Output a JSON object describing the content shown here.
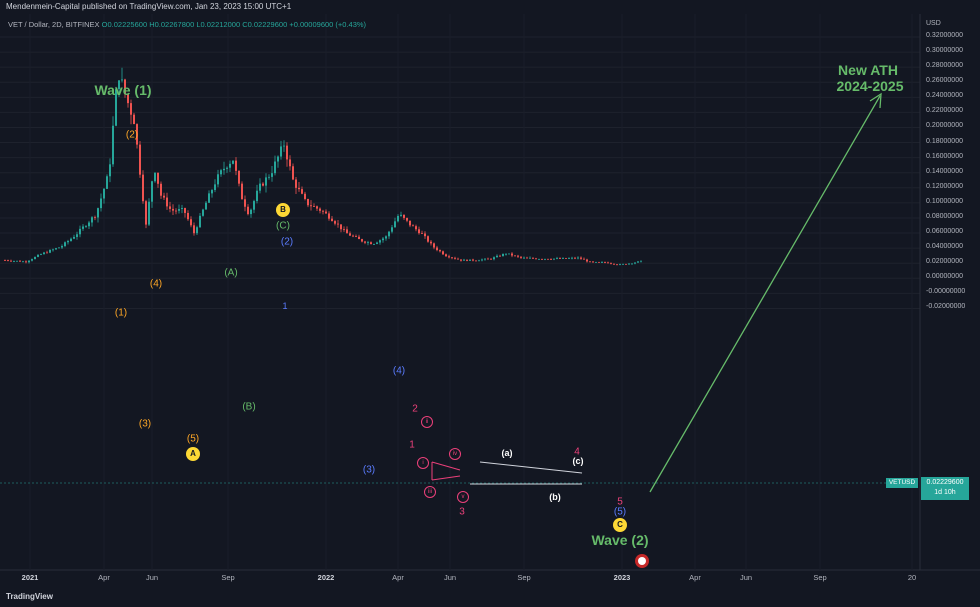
{
  "header": {
    "publisher_line": "Mendenmein-Capital published on TradingView.com, Jan 23, 2023 15:00 UTC+1"
  },
  "legend": {
    "symbol": "VET / Dollar, 2D, BITFINEX",
    "ohlc": "O0.02225600  H0.02267800  L0.02212000  C0.02229600  +0.00009600 (+0.43%)"
  },
  "price_axis": {
    "currency": "USD",
    "ticks": [
      "0.32000000",
      "0.30000000",
      "0.28000000",
      "0.26000000",
      "0.24000000",
      "0.22000000",
      "0.20000000",
      "0.18000000",
      "0.16000000",
      "0.14000000",
      "0.12000000",
      "0.10000000",
      "0.08000000",
      "0.06000000",
      "0.04000000",
      "0.02000000",
      "0.00000000",
      "-0.00000000",
      "-0.02000000"
    ],
    "last_price": "0.02229600",
    "countdown": "1d 10h",
    "symbol_badge": "VETUSD"
  },
  "time_axis": [
    "2021",
    "Apr",
    "Jun",
    "Sep",
    "2022",
    "Apr",
    "Jun",
    "Sep",
    "2023",
    "Apr",
    "Jun",
    "Sep",
    "20"
  ],
  "annotations": {
    "wave1": "Wave (1)",
    "wave2": "Wave (2)",
    "new_ath": "New ATH",
    "ath_years": "2024-2025",
    "o1": "(1)",
    "o2": "(2)",
    "o3": "(3)",
    "o4": "(4)",
    "o5": "(5)",
    "gA": "(A)",
    "gB": "(B)",
    "gC": "(C)",
    "yA": "A",
    "yB": "B",
    "yC": "C",
    "b2": "(2)",
    "b3": "(3)",
    "b4": "(4)",
    "b5": "(5)",
    "b1": "1",
    "r1": "1",
    "r2": "2",
    "r3": "3",
    "r4": "4",
    "r5": "5",
    "ri": "i",
    "rii": "ii",
    "riii": "iii",
    "riv": "iv",
    "rv": "v",
    "wa": "(a)",
    "wb": "(b)",
    "wc": "(c)"
  },
  "colors": {
    "background": "#131722",
    "up": "#26a69a",
    "down": "#ef5350",
    "wave_green": "#66bb6a",
    "orange": "#ffa726",
    "blue": "#5b7cff",
    "yellow": "#fdd835",
    "pink": "#ec407a"
  },
  "footer": {
    "brand": "TradingView"
  }
}
